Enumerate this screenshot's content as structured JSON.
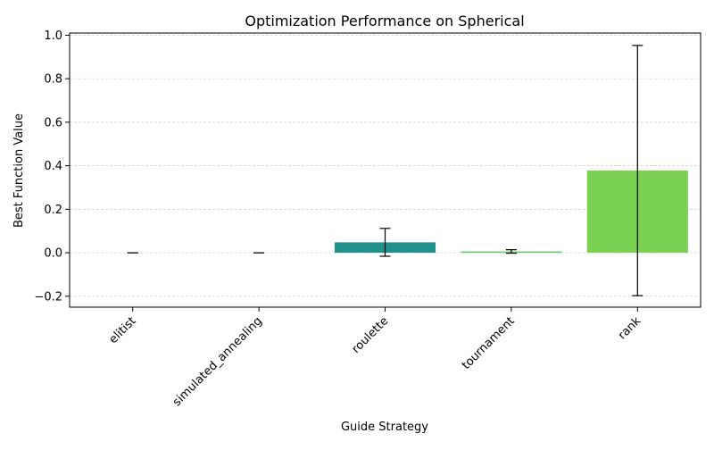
{
  "chart_data": {
    "type": "bar",
    "title": "Optimization Performance on Spherical",
    "xlabel": "Guide Strategy",
    "ylabel": "Best Function Value",
    "categories": [
      "elitist",
      "simulated_annealing",
      "roulette",
      "tournament",
      "rank"
    ],
    "values": [
      0.0,
      0.0,
      0.048,
      0.006,
      0.378
    ],
    "errors": [
      0.0,
      0.0,
      0.064,
      0.008,
      0.575
    ],
    "colors": [
      "#440154",
      "#3b528b",
      "#21918c",
      "#5ec962",
      "#7ad151"
    ],
    "ylim": [
      -0.25,
      1.01
    ],
    "yticks": [
      -0.2,
      0.0,
      0.2,
      0.4,
      0.6,
      0.8,
      1.0
    ],
    "ytick_labels": [
      "−0.2",
      "0.0",
      "0.2",
      "0.4",
      "0.6",
      "0.8",
      "1.0"
    ],
    "grid": "y-dashed",
    "legend": "none"
  }
}
